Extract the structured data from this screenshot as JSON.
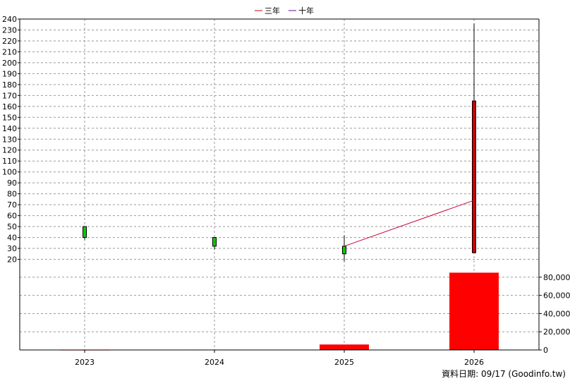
{
  "chart_data": {
    "type": "candlestick",
    "legend": {
      "placement": "top-center",
      "items": [
        {
          "label": "三年",
          "color": "#cc0000"
        },
        {
          "label": "十年",
          "color": "#660099"
        }
      ]
    },
    "categories": [
      "2023",
      "2024",
      "2025",
      "2026"
    ],
    "price_axis": {
      "range": [
        10,
        240
      ],
      "ticks": [
        20,
        30,
        40,
        50,
        60,
        70,
        80,
        90,
        100,
        110,
        120,
        130,
        140,
        150,
        160,
        170,
        180,
        190,
        200,
        210,
        220,
        230,
        240
      ]
    },
    "candles": [
      {
        "x": "2023",
        "open": 40,
        "close": 50,
        "high": 50,
        "low": 38,
        "color": "#00cc00"
      },
      {
        "x": "2024",
        "open": 32,
        "close": 40,
        "high": 40,
        "low": 29,
        "color": "#00cc00"
      },
      {
        "x": "2025",
        "open": 25,
        "close": 32,
        "high": 42,
        "low": 18,
        "color": "#00cc00"
      },
      {
        "x": "2026",
        "open": 165,
        "close": 26,
        "high": 236,
        "low": 26,
        "color": "#cc0000"
      }
    ],
    "ma_line": {
      "series": "三年",
      "color": "#cc0033",
      "points": [
        {
          "x": "2025",
          "y": 32
        },
        {
          "x": "2026",
          "y": 74
        }
      ]
    },
    "volume_axis": {
      "range": [
        0,
        90000
      ],
      "ticks": [
        0,
        20000,
        40000,
        60000,
        80000
      ],
      "tick_labels": [
        "0",
        "20,000",
        "40,000",
        "60,000",
        "80,000"
      ]
    },
    "volume": [
      {
        "x": "2023",
        "value": 300
      },
      {
        "x": "2024",
        "value": 400
      },
      {
        "x": "2025",
        "value": 6000
      },
      {
        "x": "2026",
        "value": 85000
      }
    ],
    "volume_color": "#ff0000",
    "grid": true
  },
  "footer": "資料日期: 09/17  (Goodinfo.tw)"
}
